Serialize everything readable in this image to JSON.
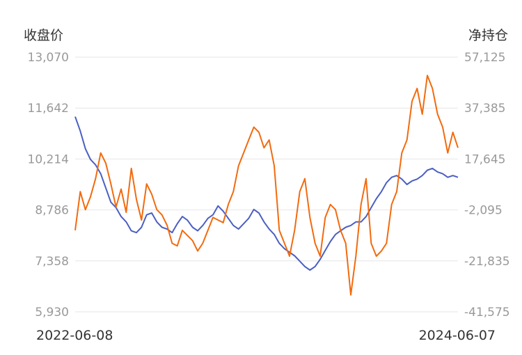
{
  "chart_data": {
    "type": "line",
    "left_axis_title": "收盘价",
    "right_axis_title": "净持仓",
    "left_ticks": [
      "13,070",
      "11,642",
      "10,214",
      "8,786",
      "7,358",
      "5,930"
    ],
    "right_ticks": [
      "57,125",
      "37,385",
      "17,645",
      "-2,095",
      "-21,835",
      "-41,575"
    ],
    "y_left_range": [
      5930,
      13070
    ],
    "y_right_range": [
      -41575,
      57125
    ],
    "x_start_label": "2022-06-08",
    "x_end_label": "2024-06-07",
    "grid": true,
    "series": [
      {
        "color": "#4a5fc1",
        "axis": "left",
        "values": [
          11400,
          11000,
          10500,
          10200,
          10050,
          9800,
          9400,
          9000,
          8850,
          8600,
          8450,
          8200,
          8150,
          8300,
          8650,
          8700,
          8450,
          8300,
          8250,
          8150,
          8400,
          8600,
          8500,
          8300,
          8200,
          8350,
          8550,
          8650,
          8900,
          8750,
          8550,
          8350,
          8250,
          8400,
          8550,
          8800,
          8700,
          8450,
          8250,
          8100,
          7850,
          7700,
          7600,
          7500,
          7350,
          7200,
          7100,
          7200,
          7400,
          7650,
          7900,
          8100,
          8200,
          8300,
          8350,
          8450,
          8450,
          8600,
          8850,
          9100,
          9300,
          9550,
          9700,
          9750,
          9650,
          9500,
          9600,
          9650,
          9750,
          9900,
          9950,
          9850,
          9800,
          9700,
          9750,
          9700
        ]
      },
      {
        "color": "#f26a0e",
        "axis": "right",
        "values": [
          -10000,
          5000,
          -2000,
          3000,
          10000,
          20000,
          16000,
          8000,
          -1000,
          6000,
          -3000,
          14000,
          2000,
          -6000,
          8000,
          4000,
          -2000,
          -4000,
          -8000,
          -15000,
          -16000,
          -10000,
          -12000,
          -14000,
          -18000,
          -15000,
          -10000,
          -5000,
          -6000,
          -7000,
          0,
          5000,
          15000,
          20000,
          25000,
          30000,
          28000,
          22000,
          25000,
          15000,
          -10000,
          -15000,
          -20000,
          -10000,
          5000,
          10000,
          -5000,
          -15000,
          -20000,
          -5000,
          0,
          -2000,
          -10000,
          -15000,
          -35000,
          -20000,
          0,
          10000,
          -15000,
          -20000,
          -18000,
          -15000,
          0,
          5000,
          20000,
          25000,
          40000,
          45000,
          35000,
          50000,
          45000,
          35000,
          30000,
          20000,
          28000,
          22000
        ]
      }
    ]
  }
}
